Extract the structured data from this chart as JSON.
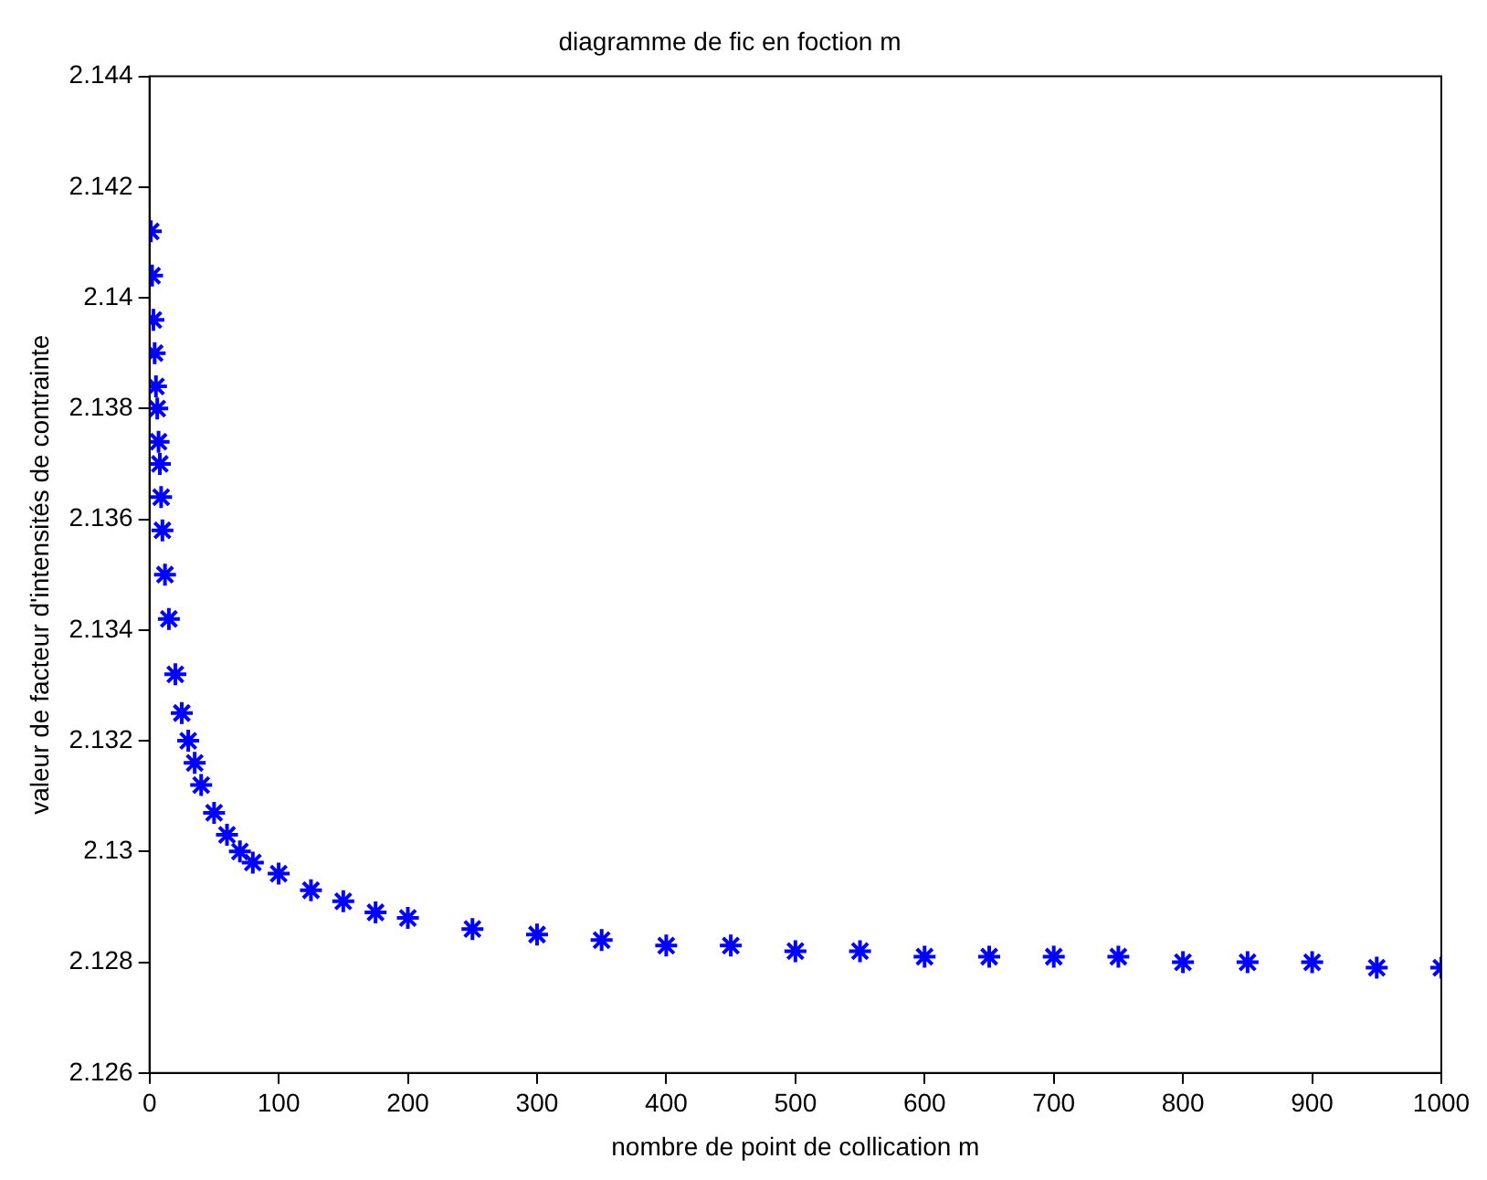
{
  "chart_data": {
    "type": "scatter",
    "title": "diagramme de fic en foction m",
    "xlabel": "nombre de point de collication m",
    "ylabel": "valeur de facteur d'intensités de contrainte",
    "x": [
      1,
      2,
      3,
      4,
      5,
      6,
      7,
      8,
      9,
      10,
      12,
      15,
      20,
      25,
      30,
      35,
      40,
      50,
      60,
      70,
      80,
      100,
      125,
      150,
      175,
      200,
      250,
      300,
      350,
      400,
      450,
      500,
      550,
      600,
      650,
      700,
      750,
      800,
      850,
      900,
      950,
      1000
    ],
    "series": [
      {
        "color": "#0000ff",
        "values": [
          2.1412,
          2.1404,
          2.1396,
          2.139,
          2.1384,
          2.138,
          2.1374,
          2.137,
          2.1364,
          2.1358,
          2.135,
          2.1342,
          2.1332,
          2.1325,
          2.132,
          2.1316,
          2.1312,
          2.1307,
          2.1303,
          2.13,
          2.1298,
          2.1296,
          2.1293,
          2.1291,
          2.1289,
          2.1288,
          2.1286,
          2.1285,
          2.1284,
          2.1283,
          2.1283,
          2.1282,
          2.1282,
          2.1281,
          2.1281,
          2.1281,
          2.1281,
          2.128,
          2.128,
          2.128,
          2.1279,
          2.1279
        ]
      }
    ],
    "xlim": [
      0,
      1000
    ],
    "xticks": [
      0,
      100,
      200,
      300,
      400,
      500,
      600,
      700,
      800,
      900,
      1000
    ],
    "ylim": [
      2.126,
      2.144
    ],
    "yticks": [
      2.126,
      2.128,
      2.13,
      2.132,
      2.134,
      2.136,
      2.138,
      2.14,
      2.142,
      2.144
    ],
    "grid": false,
    "legend": false,
    "marker": "cross"
  }
}
